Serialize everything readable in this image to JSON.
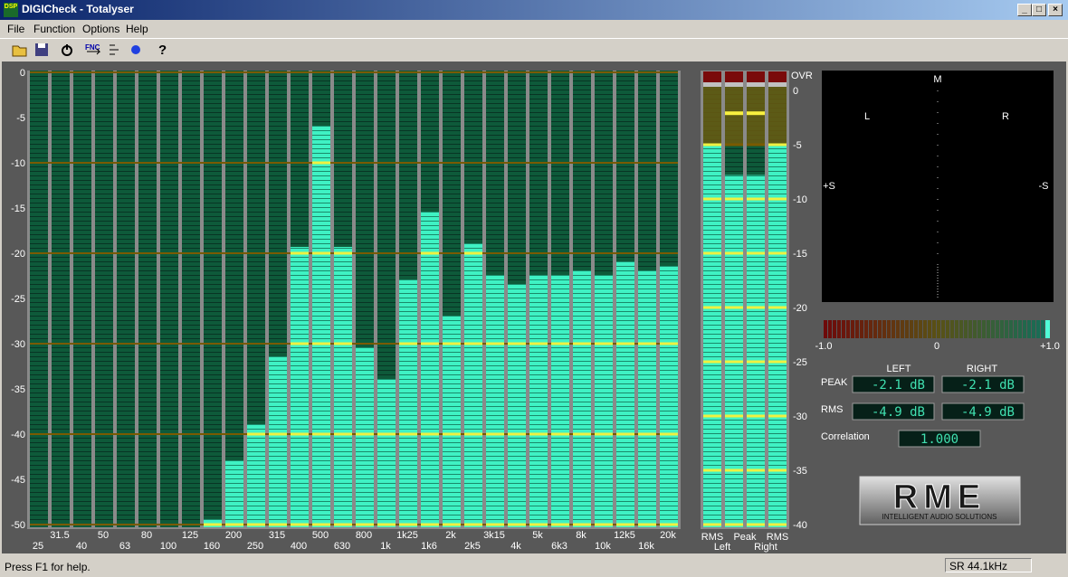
{
  "window": {
    "icon": "DSP",
    "title": "DIGICheck - Totalyser"
  },
  "menu": [
    "File",
    "Function",
    "Options",
    "Help"
  ],
  "toolbar": {
    "fnc": "FNC"
  },
  "spectrum": {
    "type": "bar",
    "categories": [
      "25",
      "31.5",
      "40",
      "50",
      "63",
      "80",
      "100",
      "125",
      "160",
      "200",
      "250",
      "315",
      "400",
      "500",
      "630",
      "800",
      "1k",
      "1k25",
      "1k6",
      "2k",
      "2k5",
      "3k15",
      "4k",
      "5k",
      "6k3",
      "8k",
      "10k",
      "12k5",
      "16k",
      "20k"
    ],
    "values": [
      null,
      null,
      null,
      null,
      null,
      null,
      null,
      null,
      -49.4,
      -42.9,
      -38.9,
      -31.4,
      -19.3,
      -5.9,
      -19.3,
      -30.4,
      -33.9,
      -22.9,
      -15.4,
      -26.9,
      -18.9,
      -22.4,
      -23.4,
      -22.4,
      -22.4,
      -21.9,
      -22.4,
      -20.9,
      -21.9,
      -21.4
    ],
    "color": "#3ff2c4",
    "ylim": [
      -50,
      0
    ],
    "yticks": [
      0,
      -5,
      -10,
      -15,
      -20,
      -25,
      -30,
      -35,
      -40,
      -45,
      -50
    ],
    "grid": true
  },
  "level_meter": {
    "type": "bar",
    "ovr_label": "OVR",
    "column_labels": [
      "RMS",
      "Peak",
      "RMS"
    ],
    "channel_labels": [
      "Left",
      "Right"
    ],
    "values": [
      -4.9,
      -7.8,
      -7.8,
      -4.9
    ],
    "peak_hold": [
      null,
      -2.1,
      -2.1,
      null
    ],
    "color": "#3ff2c4",
    "ylim": [
      -40,
      0
    ],
    "yticks": [
      0,
      -5,
      -10,
      -15,
      -20,
      -25,
      -30,
      -35,
      -40
    ]
  },
  "goniometer": {
    "labels": {
      "m": "M",
      "l": "L",
      "r": "R",
      "plus_s": "+S",
      "minus_s": "-S"
    }
  },
  "correlation_meter": {
    "type": "bar",
    "xlim": [
      -1,
      1
    ],
    "xticks": [
      {
        "value": -1,
        "label": "-1.0"
      },
      0,
      {
        "value": 1,
        "label": "+1.0"
      }
    ],
    "value": 1
  },
  "readouts": {
    "column_labels": [
      "LEFT",
      "RIGHT"
    ],
    "rows": [
      {
        "label": "PEAK",
        "values": [
          "-2.1 dB",
          "-2.1 dB"
        ]
      },
      {
        "label": "RMS",
        "values": [
          "-4.9 dB",
          "-4.9 dB"
        ]
      }
    ],
    "correlation": {
      "label": "Correlation",
      "value": "1.000"
    }
  },
  "logo": {
    "text": "RME",
    "tagline": "INTELLIGENT AUDIO SOLUTIONS"
  },
  "status": {
    "help": "Press F1 for help.",
    "sample_rate": "SR 44.1kHz"
  }
}
